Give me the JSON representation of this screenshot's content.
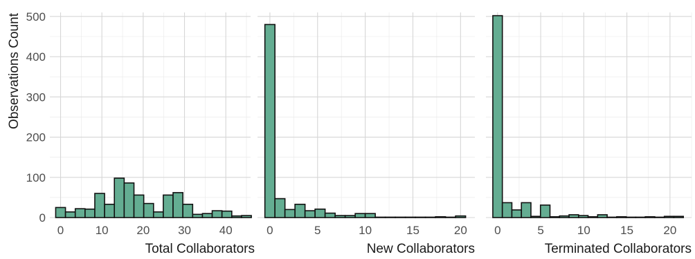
{
  "ylabel": "Observations Count",
  "chart_data": [
    {
      "type": "bar",
      "xlabel": "Total Collaborators",
      "ylabel": "Observations Count",
      "xlim": [
        -2.6,
        46
      ],
      "xticks": [
        0,
        10,
        20,
        30,
        40
      ],
      "ylim": [
        0,
        510
      ],
      "yticks": [
        0,
        100,
        200,
        300,
        400,
        500
      ],
      "grid": true,
      "bin_width": 2.37,
      "x": [
        0,
        2.37,
        4.74,
        7.11,
        9.47,
        11.84,
        14.21,
        16.58,
        18.95,
        21.32,
        23.68,
        26.05,
        28.42,
        30.79,
        33.16,
        35.53,
        37.89,
        40.26,
        42.63,
        45.0
      ],
      "values": [
        25,
        14,
        22,
        21,
        60,
        33,
        98,
        86,
        56,
        35,
        14,
        56,
        62,
        33,
        8,
        10,
        17,
        16,
        4,
        5
      ],
      "color": "#64ad92"
    },
    {
      "type": "bar",
      "xlabel": "New Collaborators",
      "ylabel": "Observations Count",
      "xlim": [
        -1.3,
        21.5
      ],
      "xticks": [
        0,
        5,
        10,
        15,
        20
      ],
      "ylim": [
        0,
        510
      ],
      "yticks": [
        0,
        100,
        200,
        300,
        400,
        500
      ],
      "grid": true,
      "bin_width": 1.053,
      "x": [
        0,
        1.053,
        2.105,
        3.158,
        4.211,
        5.263,
        6.316,
        7.368,
        8.421,
        9.474,
        10.526,
        11.579,
        12.632,
        13.684,
        14.737,
        15.789,
        16.842,
        17.895,
        18.947,
        20.0
      ],
      "values": [
        480,
        47,
        20,
        33,
        17,
        21,
        11,
        5,
        5,
        10,
        10,
        1,
        1,
        1,
        1,
        1,
        1,
        2,
        1,
        4
      ],
      "color": "#64ad92"
    },
    {
      "type": "bar",
      "xlabel": "Terminated Collaborators",
      "ylabel": "Observations Count",
      "xlim": [
        -1.35,
        22.5
      ],
      "xticks": [
        0,
        5,
        10,
        15,
        20
      ],
      "ylim": [
        0,
        510
      ],
      "yticks": [
        0,
        100,
        200,
        300,
        400,
        500
      ],
      "grid": true,
      "bin_width": 1.105,
      "x": [
        0,
        1.105,
        2.211,
        3.316,
        4.421,
        5.526,
        6.632,
        7.737,
        8.842,
        9.947,
        11.053,
        12.158,
        13.263,
        14.368,
        15.474,
        16.579,
        17.684,
        18.789,
        19.895,
        21.0
      ],
      "values": [
        502,
        37,
        19,
        37,
        3,
        31,
        2,
        4,
        7,
        5,
        2,
        7,
        1,
        2,
        1,
        1,
        2,
        1,
        3,
        3
      ],
      "color": "#64ad92"
    }
  ]
}
